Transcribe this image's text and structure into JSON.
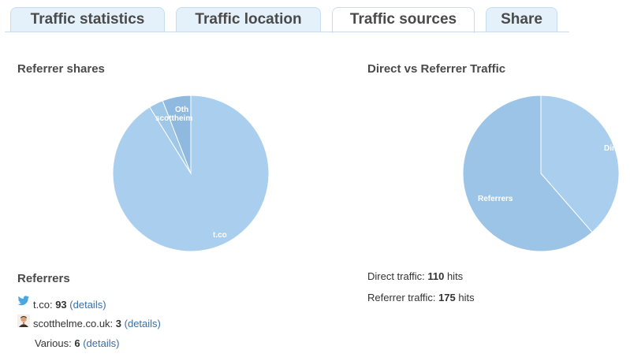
{
  "tabs": [
    {
      "label": "Traffic statistics",
      "active": false
    },
    {
      "label": "Traffic location",
      "active": false
    },
    {
      "label": "Traffic sources",
      "active": true
    },
    {
      "label": "Share",
      "active": false
    }
  ],
  "referrer_shares": {
    "title": "Referrer shares",
    "slice_colors": [
      "#aacfee",
      "#9fc7e8",
      "#8fb9de"
    ]
  },
  "direct_vs_referrer": {
    "title": "Direct vs Referrer Traffic",
    "slice_colors": [
      "#aacfee",
      "#9cc4e6"
    ]
  },
  "chart_data": [
    {
      "type": "pie",
      "title": "Referrer shares",
      "labels": [
        "t.co",
        "scotthelme.co.uk",
        "Others"
      ],
      "visible_labels": [
        "t.co",
        "scottheim",
        "Oth"
      ],
      "values": [
        93,
        3,
        6
      ]
    },
    {
      "type": "pie",
      "title": "Direct vs Referrer Traffic",
      "labels": [
        "Direct",
        "Referrers"
      ],
      "visible_labels": [
        "Dir",
        "Referrers"
      ],
      "values": [
        110,
        175
      ]
    }
  ],
  "referrers": {
    "title": "Referrers",
    "details_label": "(details)",
    "items": [
      {
        "name": "t.co:",
        "count": "93",
        "icon": "twitter-bird-icon"
      },
      {
        "name": "scotthelme.co.uk:",
        "count": "3",
        "icon": "avatar-icon"
      },
      {
        "name": "Various:",
        "count": "6",
        "icon": ""
      }
    ]
  },
  "summary": {
    "direct_label": "Direct traffic:",
    "direct_value": "110",
    "referrer_label": "Referrer traffic:",
    "referrer_value": "175",
    "unit": "hits"
  }
}
